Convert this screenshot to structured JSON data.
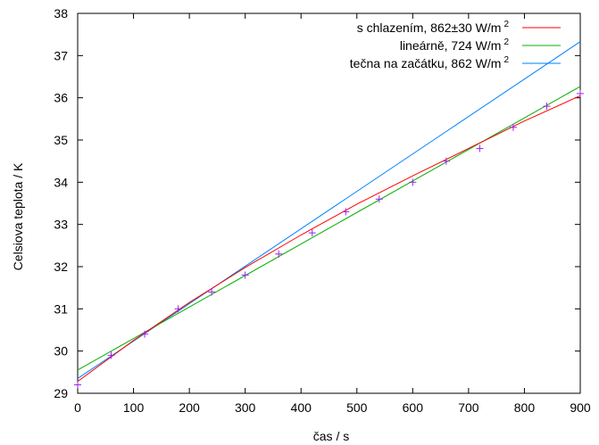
{
  "chart_data": {
    "type": "line",
    "xlabel": "čas / s",
    "ylabel": "Celsiova teplota / K",
    "xlim": [
      0,
      900
    ],
    "ylim": [
      29,
      38
    ],
    "x_ticks": [
      "0",
      "100",
      "200",
      "300",
      "400",
      "500",
      "600",
      "700",
      "800",
      "900"
    ],
    "y_ticks": [
      "29",
      "30",
      "31",
      "32",
      "33",
      "34",
      "35",
      "36",
      "37",
      "38"
    ],
    "grid": false,
    "legend_position": "top-right",
    "series": [
      {
        "name": "s chlazením, 862±30 W/m",
        "name_superscript": "2",
        "color": "#ff0000",
        "style": "line",
        "x": [
          0,
          100,
          200,
          300,
          400,
          500,
          600,
          700,
          800,
          900
        ],
        "y": [
          29.28,
          30.25,
          31.15,
          31.98,
          32.75,
          33.48,
          34.15,
          34.8,
          35.45,
          36.05
        ]
      },
      {
        "name": "lineárně, 724 W/m",
        "name_superscript": "2",
        "color": "#00b000",
        "style": "line",
        "x": [
          0,
          900
        ],
        "y": [
          29.55,
          36.27
        ]
      },
      {
        "name": "tečna na začátku, 862 W/m",
        "name_superscript": "2",
        "color": "#0080ff",
        "style": "line",
        "x": [
          0,
          900
        ],
        "y": [
          29.35,
          37.33
        ]
      },
      {
        "name": "",
        "color": "#a020f0",
        "style": "points",
        "marker": "+",
        "x": [
          0,
          60,
          120,
          180,
          240,
          300,
          360,
          420,
          480,
          540,
          600,
          660,
          720,
          780,
          840,
          900
        ],
        "y": [
          29.2,
          29.9,
          30.4,
          31.0,
          31.4,
          31.8,
          32.3,
          32.8,
          33.3,
          33.6,
          34.0,
          34.5,
          34.8,
          35.3,
          35.8,
          36.1
        ]
      }
    ]
  }
}
